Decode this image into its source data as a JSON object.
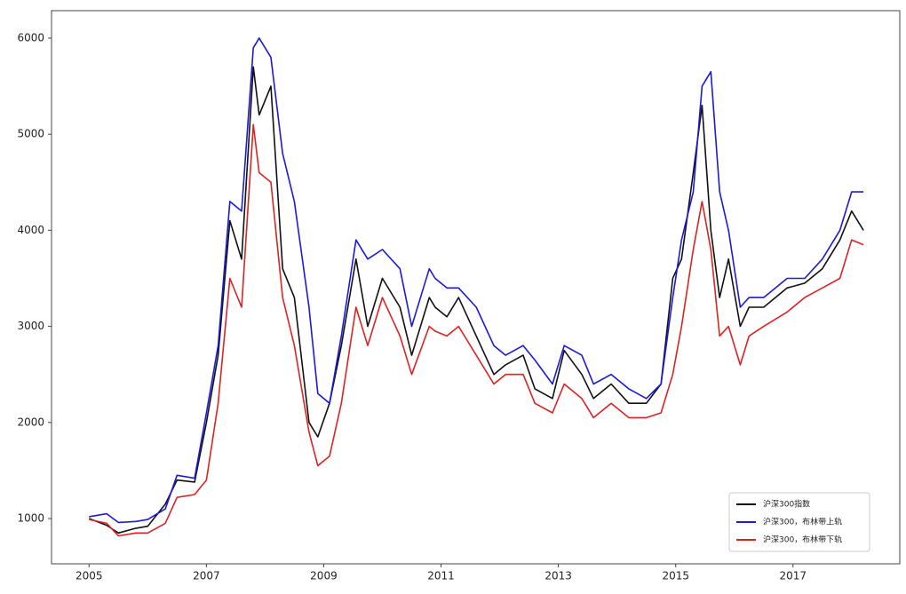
{
  "chart_data": {
    "type": "line",
    "x": [
      2005.0,
      2005.3,
      2005.5,
      2005.8,
      2006.0,
      2006.3,
      2006.5,
      2006.8,
      2007.0,
      2007.2,
      2007.4,
      2007.6,
      2007.8,
      2007.9,
      2008.1,
      2008.3,
      2008.5,
      2008.75,
      2008.9,
      2009.1,
      2009.3,
      2009.55,
      2009.75,
      2010.0,
      2010.3,
      2010.5,
      2010.8,
      2010.9,
      2011.1,
      2011.3,
      2011.6,
      2011.9,
      2012.1,
      2012.4,
      2012.6,
      2012.9,
      2013.1,
      2013.4,
      2013.6,
      2013.9,
      2014.2,
      2014.5,
      2014.75,
      2014.95,
      2015.1,
      2015.3,
      2015.45,
      2015.6,
      2015.75,
      2015.9,
      2016.1,
      2016.25,
      2016.5,
      2016.9,
      2017.2,
      2017.5,
      2017.8,
      2018.0,
      2018.2
    ],
    "series": [
      {
        "name": "沪深300指数",
        "color": "#111111",
        "values": [
          1000,
          930,
          850,
          900,
          920,
          1150,
          1400,
          1380,
          2000,
          2700,
          4100,
          3700,
          5700,
          5200,
          5500,
          3600,
          3300,
          2000,
          1850,
          2200,
          2800,
          3700,
          3000,
          3500,
          3200,
          2700,
          3300,
          3200,
          3100,
          3300,
          2900,
          2500,
          2600,
          2700,
          2350,
          2250,
          2750,
          2500,
          2250,
          2400,
          2200,
          2200,
          2400,
          3500,
          3700,
          4600,
          5300,
          4000,
          3300,
          3700,
          3000,
          3200,
          3200,
          3400,
          3450,
          3600,
          3900,
          4200,
          4000
        ]
      },
      {
        "name": "沪深300，布林带上轨",
        "color": "#1a1ad8",
        "values": [
          1020,
          1050,
          960,
          970,
          990,
          1100,
          1450,
          1420,
          2100,
          2800,
          4300,
          4200,
          5900,
          6000,
          5800,
          4800,
          4300,
          3200,
          2300,
          2200,
          2900,
          3900,
          3700,
          3800,
          3600,
          3000,
          3600,
          3500,
          3400,
          3400,
          3200,
          2800,
          2700,
          2800,
          2650,
          2400,
          2800,
          2700,
          2400,
          2500,
          2350,
          2250,
          2400,
          3300,
          3900,
          4400,
          5500,
          5650,
          4400,
          4000,
          3200,
          3300,
          3300,
          3500,
          3500,
          3700,
          4000,
          4400,
          4400
        ]
      },
      {
        "name": "沪深300，布林带下轨",
        "color": "#dd2222",
        "values": [
          990,
          950,
          820,
          850,
          850,
          950,
          1220,
          1250,
          1400,
          2200,
          3500,
          3200,
          5100,
          4600,
          4500,
          3300,
          2800,
          1900,
          1550,
          1650,
          2200,
          3200,
          2800,
          3300,
          2900,
          2500,
          3000,
          2950,
          2900,
          3000,
          2700,
          2400,
          2500,
          2500,
          2200,
          2100,
          2400,
          2250,
          2050,
          2200,
          2050,
          2050,
          2100,
          2500,
          3000,
          3800,
          4300,
          3800,
          2900,
          3000,
          2600,
          2900,
          3000,
          3150,
          3300,
          3400,
          3500,
          3900,
          3850
        ]
      }
    ],
    "xlim": [
      2004.36,
      2018.82
    ],
    "xticks": [
      2005,
      2007,
      2009,
      2011,
      2013,
      2015,
      2017
    ],
    "ylim": [
      529,
      6286
    ],
    "yticks": [
      1000,
      2000,
      3000,
      4000,
      5000,
      6000
    ],
    "legend": "lower right"
  }
}
